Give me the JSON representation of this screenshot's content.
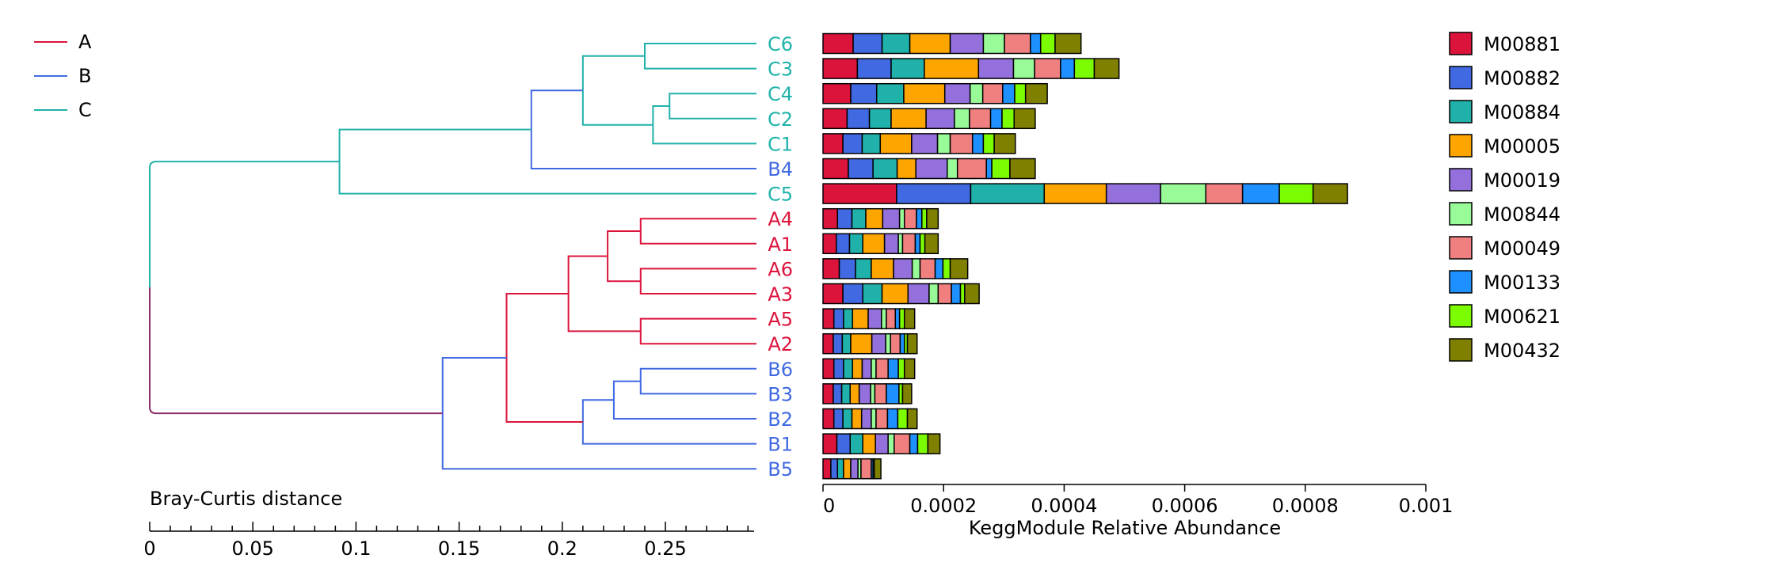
{
  "chart_data": {
    "type": "dendrogram-stacked-bar",
    "group_legend": [
      {
        "name": "A",
        "color": "#DC143C"
      },
      {
        "name": "B",
        "color": "#4169E1"
      },
      {
        "name": "C",
        "color": "#20B2AA"
      }
    ],
    "samples": [
      "C6",
      "C3",
      "C4",
      "C2",
      "C1",
      "B4",
      "C5",
      "A4",
      "A1",
      "A6",
      "A3",
      "A5",
      "A2",
      "B6",
      "B3",
      "B2",
      "B1",
      "B5"
    ],
    "sample_groups": [
      "C",
      "C",
      "C",
      "C",
      "C",
      "B",
      "C",
      "A",
      "A",
      "A",
      "A",
      "A",
      "A",
      "B",
      "B",
      "B",
      "B",
      "B"
    ],
    "dendrogram": {
      "xlabel": "Bray-Curtis distance",
      "ticks": [
        0,
        0.05,
        0.1,
        0.15,
        0.2,
        0.25
      ],
      "tick_labels": [
        "0",
        "0.05",
        "0.1",
        "0.15",
        "0.2",
        "0.25"
      ],
      "xlim": [
        0,
        0.293
      ],
      "merges": [
        {
          "id": "m1",
          "a": "A4",
          "b": "A1",
          "height": 0.238,
          "color": "#DC143C"
        },
        {
          "id": "m2",
          "a": "A6",
          "b": "A3",
          "height": 0.238,
          "color": "#DC143C"
        },
        {
          "id": "m3",
          "a": "A5",
          "b": "A2",
          "height": 0.238,
          "color": "#DC143C"
        },
        {
          "id": "m4",
          "a": "m1",
          "b": "m2",
          "height": 0.222,
          "color": "#DC143C"
        },
        {
          "id": "m5",
          "a": "m4",
          "b": "m3",
          "height": 0.203,
          "color": "#DC143C"
        },
        {
          "id": "m6",
          "a": "B6",
          "b": "B3",
          "height": 0.238,
          "color": "#4169E1"
        },
        {
          "id": "m7",
          "a": "m6",
          "b": "B2",
          "height": 0.225,
          "color": "#4169E1"
        },
        {
          "id": "m8",
          "a": "m7",
          "b": "B1",
          "height": 0.21,
          "color": "#4169E1"
        },
        {
          "id": "m9",
          "a": "m5",
          "b": "m8",
          "height": 0.173,
          "color": "#DC143C"
        },
        {
          "id": "m10",
          "a": "m9",
          "b": "B5",
          "height": 0.142,
          "color": "#4169E1"
        },
        {
          "id": "m11",
          "a": "C4",
          "b": "C2",
          "height": 0.252,
          "color": "#20B2AA"
        },
        {
          "id": "m12",
          "a": "m11",
          "b": "C1",
          "height": 0.244,
          "color": "#20B2AA"
        },
        {
          "id": "m13",
          "a": "C6",
          "b": "C3",
          "height": 0.24,
          "color": "#20B2AA"
        },
        {
          "id": "m14",
          "a": "m13",
          "b": "m12",
          "height": 0.21,
          "color": "#20B2AA"
        },
        {
          "id": "m15",
          "a": "m14",
          "b": "B4",
          "height": 0.185,
          "color": "#4169E1"
        },
        {
          "id": "m16",
          "a": "m15",
          "b": "C5",
          "height": 0.092,
          "color": "#20B2AA"
        },
        {
          "id": "m17",
          "a": "m16",
          "b": "m10",
          "height": 0.0,
          "color": "#20B2AA",
          "color_b": "#8B2C6B"
        }
      ]
    },
    "bars": {
      "xlabel": "KeggModule Relative Abundance",
      "xlim": [
        0,
        0.001
      ],
      "ticks": [
        0,
        0.0002,
        0.0004,
        0.0006,
        0.0008,
        0.001
      ],
      "tick_labels": [
        "0",
        "0.0002",
        "0.0004",
        "0.0006",
        "0.0008",
        "0.001"
      ],
      "series": [
        {
          "name": "M00881",
          "color": "#DC143C",
          "values": [
            5e-05,
            5.7e-05,
            4.6e-05,
            4e-05,
            3.3e-05,
            4.2e-05,
            0.000122,
            2.4e-05,
            2.2e-05,
            2.7e-05,
            3.3e-05,
            1.8e-05,
            1.7e-05,
            1.8e-05,
            1.7e-05,
            1.8e-05,
            2.3e-05,
            1.3e-05
          ]
        },
        {
          "name": "M00882",
          "color": "#4169E1",
          "values": [
            4.8e-05,
            5.6e-05,
            4.3e-05,
            3.7e-05,
            3.2e-05,
            4.1e-05,
            0.000123,
            2.4e-05,
            2.2e-05,
            2.7e-05,
            3.3e-05,
            1.6e-05,
            1.5e-05,
            1.6e-05,
            1.4e-05,
            1.5e-05,
            2.2e-05,
            1.1e-05
          ]
        },
        {
          "name": "M00884",
          "color": "#20B2AA",
          "values": [
            4.6e-05,
            5.5e-05,
            4.5e-05,
            3.6e-05,
            3e-05,
            4e-05,
            0.000122,
            2.3e-05,
            2.2e-05,
            2.6e-05,
            3.2e-05,
            1.5e-05,
            1.4e-05,
            1.5e-05,
            1.4e-05,
            1.5e-05,
            2.1e-05,
            1e-05
          ]
        },
        {
          "name": "M00005",
          "color": "#FFA500",
          "values": [
            6.7e-05,
            9e-05,
            6.8e-05,
            5.8e-05,
            5.2e-05,
            3.1e-05,
            0.000103,
            2.8e-05,
            3.6e-05,
            3.7e-05,
            4.3e-05,
            2.6e-05,
            3.5e-05,
            1.6e-05,
            1.5e-05,
            1.6e-05,
            2.1e-05,
            1.2e-05
          ]
        },
        {
          "name": "M00019",
          "color": "#9370DB",
          "values": [
            5.5e-05,
            5.8e-05,
            4.2e-05,
            4.7e-05,
            4.3e-05,
            5.2e-05,
            9e-05,
            2.8e-05,
            2.3e-05,
            3.1e-05,
            3.5e-05,
            2.2e-05,
            2.3e-05,
            1.5e-05,
            1.9e-05,
            1.6e-05,
            2.1e-05,
            1.2e-05
          ]
        },
        {
          "name": "M00844",
          "color": "#98FB98",
          "values": [
            3.5e-05,
            3.5e-05,
            2.1e-05,
            2.5e-05,
            2.1e-05,
            1.7e-05,
            7.5e-05,
            8e-06,
            7e-06,
            1.3e-05,
            1.5e-05,
            8e-06,
            8e-06,
            8e-06,
            7e-06,
            8e-06,
            1e-05,
            5e-06
          ]
        },
        {
          "name": "M00049",
          "color": "#F08080",
          "values": [
            4.3e-05,
            4.3e-05,
            3.3e-05,
            3.5e-05,
            3.7e-05,
            4.8e-05,
            6.1e-05,
            2e-05,
            2.1e-05,
            2.5e-05,
            2.2e-05,
            1.5e-05,
            1.6e-05,
            2e-05,
            1.9e-05,
            1.9e-05,
            2.6e-05,
            1.7e-05
          ]
        },
        {
          "name": "M00133",
          "color": "#1E90FF",
          "values": [
            1.7e-05,
            2.3e-05,
            2e-05,
            1.9e-05,
            1.8e-05,
            9e-06,
            6.1e-05,
            9e-06,
            8e-06,
            1.3e-05,
            1.5e-05,
            7e-06,
            7e-06,
            1.7e-05,
            2.1e-05,
            1.7e-05,
            1.3e-05,
            3e-06
          ]
        },
        {
          "name": "M00621",
          "color": "#7CFC00",
          "values": [
            2.4e-05,
            3.3e-05,
            1.8e-05,
            2e-05,
            1.8e-05,
            3e-05,
            5.6e-05,
            8e-06,
            8e-06,
            1.2e-05,
            7e-06,
            8e-06,
            5e-06,
            1e-05,
            6e-06,
            1.6e-05,
            1.7e-05,
            2e-06
          ]
        },
        {
          "name": "M00432",
          "color": "#808000",
          "values": [
            4.3e-05,
            4.1e-05,
            3.6e-05,
            3.5e-05,
            3.5e-05,
            4.2e-05,
            5.7e-05,
            1.9e-05,
            2.2e-05,
            2.9e-05,
            2.4e-05,
            1.7e-05,
            1.6e-05,
            1.7e-05,
            1.5e-05,
            1.6e-05,
            2e-05,
            1.1e-05
          ]
        }
      ]
    }
  }
}
